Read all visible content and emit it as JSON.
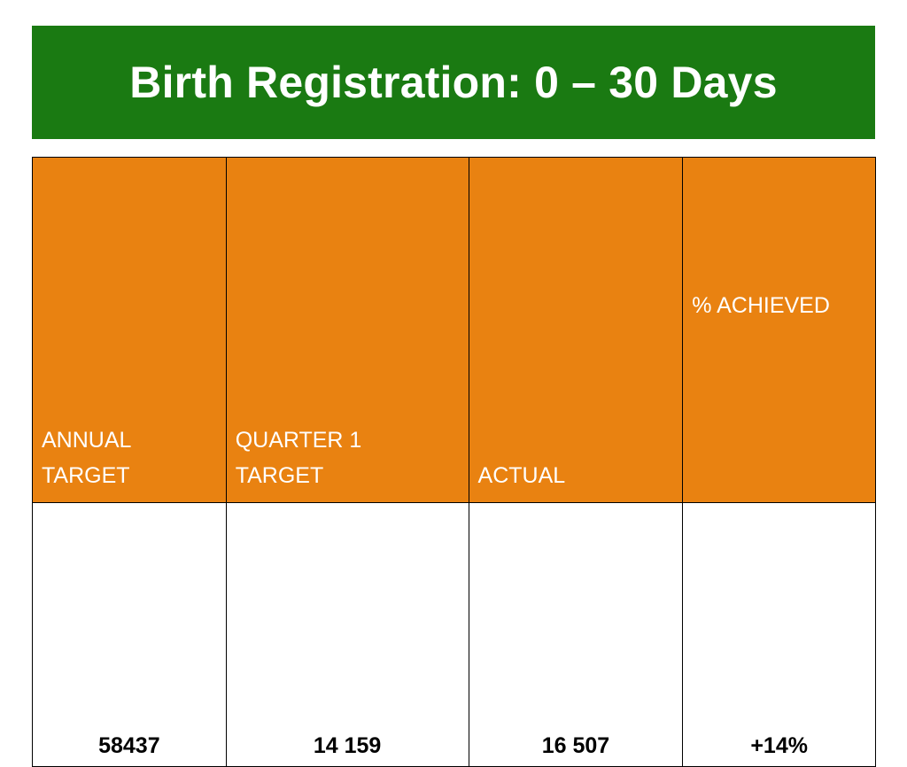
{
  "slide": {
    "title": "Birth Registration: 0 – 30 Days"
  },
  "table": {
    "headers": [
      {
        "line1": "ANNUAL",
        "line2": "TARGET"
      },
      {
        "line1": "QUARTER 1",
        "line2": "TARGET"
      },
      {
        "line1": "",
        "line2": "ACTUAL"
      },
      {
        "line1": "% ACHIEVED",
        "line2": ""
      }
    ],
    "row": [
      "58437",
      "14 159",
      "16 507",
      "+14%"
    ]
  },
  "colors": {
    "title_background": "#1a7a12",
    "header_background": "#e98211",
    "header_text": "#ffffff",
    "body_text": "#000000"
  }
}
